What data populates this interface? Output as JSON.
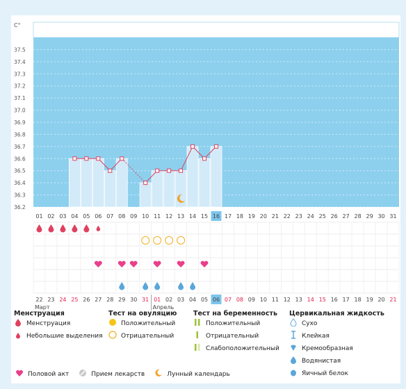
{
  "chart_data": {
    "type": "bar",
    "ylabel": "C°",
    "ylim": [
      36.2,
      37.6
    ],
    "y_ticks": [
      "37.5",
      "37.4",
      "37.3",
      "37.2",
      "37.1",
      "37.0",
      "36.9",
      "36.8",
      "36.7",
      "36.6",
      "36.5",
      "36.4",
      "36.3",
      "36.2"
    ],
    "cycle_days": [
      "01",
      "02",
      "03",
      "04",
      "05",
      "06",
      "07",
      "08",
      "09",
      "10",
      "11",
      "12",
      "13",
      "14",
      "15",
      "16",
      "17",
      "18",
      "19",
      "20",
      "21",
      "22",
      "23",
      "24",
      "25",
      "26",
      "27",
      "28",
      "29",
      "30",
      "31"
    ],
    "current_day": "16",
    "temperatures": [
      null,
      null,
      null,
      36.6,
      36.6,
      36.6,
      36.5,
      36.6,
      null,
      36.4,
      36.5,
      36.5,
      36.5,
      36.7,
      36.6,
      36.7,
      null,
      null,
      null,
      null,
      null,
      null,
      null,
      null,
      null,
      null,
      null,
      null,
      null,
      null,
      null
    ],
    "menstruation": [
      2,
      2,
      2,
      2,
      2,
      1,
      0,
      0,
      0,
      0,
      0,
      0,
      0,
      0,
      0,
      0,
      0,
      0,
      0,
      0,
      0,
      0,
      0,
      0,
      0,
      0,
      0,
      0,
      0,
      0,
      0
    ],
    "ovulation_test_negative": [
      10,
      11,
      12,
      13
    ],
    "intercourse": [
      6,
      8,
      9,
      11,
      13,
      15
    ],
    "cervical_fluid_water": [
      8,
      10,
      11,
      13,
      14
    ],
    "moon_day": 13,
    "calendar_dates": [
      "22",
      "23",
      "24",
      "25",
      "26",
      "27",
      "28",
      "29",
      "30",
      "31",
      "01",
      "02",
      "03",
      "04",
      "05",
      "06",
      "07",
      "08",
      "09",
      "10",
      "11",
      "12",
      "13",
      "14",
      "15",
      "16",
      "17",
      "18",
      "19",
      "20",
      "21"
    ],
    "weekend_dates": [
      2,
      3,
      9,
      10,
      16,
      17,
      23,
      24,
      30
    ],
    "today_date_index": 15,
    "month_labels": [
      {
        "label": "Март",
        "start": 0
      },
      {
        "label": "Апрель",
        "start": 10
      }
    ],
    "colors": {
      "chart_bg": "#8dd0ee",
      "bar": "#d3eaf8",
      "line": "#e0405f",
      "weekend": "#e02050",
      "drop": "#e0405f",
      "heart": "#e8408a",
      "water": "#5aa6da",
      "ovu_neg": "#f0b020",
      "moon": "#f0a020",
      "today_bg": "#7dc5ec"
    }
  },
  "legend": {
    "menstruation": {
      "title": "Менструация",
      "items": [
        {
          "icon": "drop-icon",
          "label": "Менструация"
        },
        {
          "icon": "small-drop-icon",
          "label": "Небольшие выделения"
        }
      ]
    },
    "ovulation": {
      "title": "Тест на овуляцию",
      "items": [
        {
          "icon": "filled-circle-icon",
          "label": "Положительный"
        },
        {
          "icon": "empty-circle-icon",
          "label": "Отрицательный"
        }
      ]
    },
    "pregnancy": {
      "title": "Тест на беременность",
      "items": [
        {
          "icon": "double-bar-icon",
          "label": "Положительный"
        },
        {
          "icon": "single-bar-icon",
          "label": "Отрицательный"
        },
        {
          "icon": "faint-bar-icon",
          "label": "Слабоположительный"
        }
      ]
    },
    "cervical": {
      "title": "Цервикальная жидкость",
      "items": [
        {
          "icon": "dry-icon",
          "label": "Сухо"
        },
        {
          "icon": "sticky-icon",
          "label": "Клейкая"
        },
        {
          "icon": "creamy-icon",
          "label": "Кремообразная"
        },
        {
          "icon": "watery-icon",
          "label": "Водянистая"
        },
        {
          "icon": "egg-white-icon",
          "label": "Яичный белок"
        }
      ]
    },
    "bottom": [
      {
        "icon": "heart-icon",
        "label": "Половой акт"
      },
      {
        "icon": "pill-icon",
        "label": "Прием лекарств"
      },
      {
        "icon": "moon-icon",
        "label": "Лунный календарь"
      }
    ]
  }
}
